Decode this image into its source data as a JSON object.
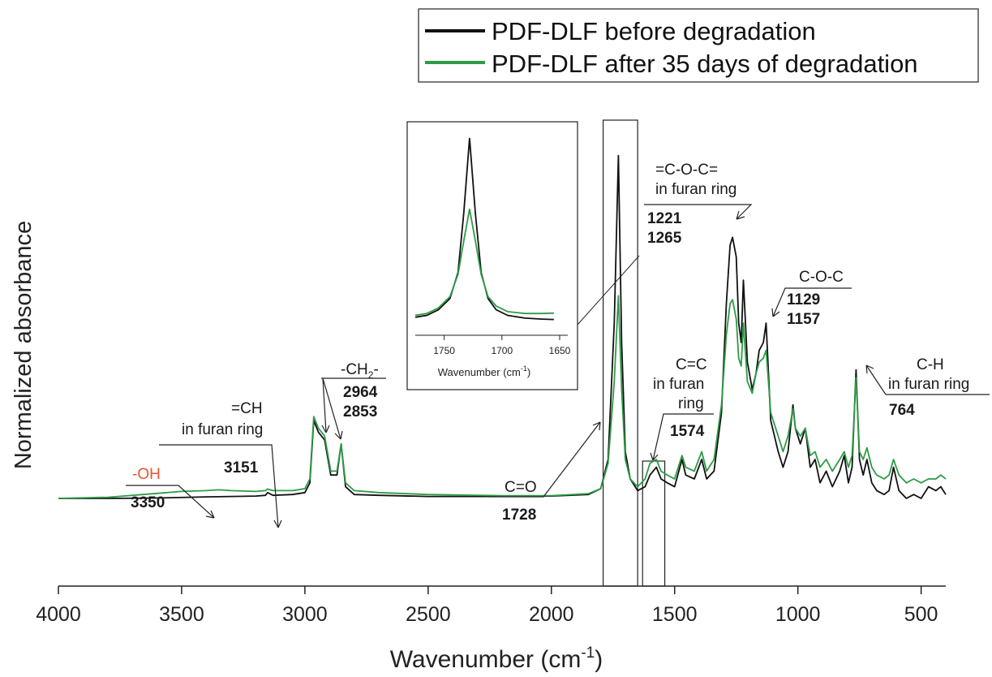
{
  "chart_data": {
    "type": "line",
    "xlabel_main": "Wavenumber (cm",
    "xlabel_sup": "-1",
    "xlabel_close": ")",
    "ylabel": "Normalized absorbance",
    "xlim": [
      4000,
      400
    ],
    "xaxis_reversed": true,
    "ylim": [
      0,
      1
    ],
    "xticks": [
      4000,
      3500,
      3000,
      2500,
      2000,
      1500,
      1000,
      500
    ],
    "grid": false,
    "legend_position": "top-right",
    "series": [
      {
        "name": "PDF-DLF before degradation",
        "color": "#111111",
        "points": [
          [
            4000,
            0.1
          ],
          [
            3800,
            0.1
          ],
          [
            3600,
            0.101
          ],
          [
            3400,
            0.104
          ],
          [
            3200,
            0.106
          ],
          [
            3160,
            0.108
          ],
          [
            3151,
            0.115
          ],
          [
            3130,
            0.108
          ],
          [
            3050,
            0.11
          ],
          [
            3000,
            0.115
          ],
          [
            2980,
            0.14
          ],
          [
            2964,
            0.3
          ],
          [
            2945,
            0.27
          ],
          [
            2920,
            0.25
          ],
          [
            2895,
            0.16
          ],
          [
            2870,
            0.16
          ],
          [
            2853,
            0.24
          ],
          [
            2835,
            0.13
          ],
          [
            2800,
            0.11
          ],
          [
            2700,
            0.108
          ],
          [
            2500,
            0.105
          ],
          [
            2200,
            0.105
          ],
          [
            2000,
            0.106
          ],
          [
            1850,
            0.11
          ],
          [
            1800,
            0.125
          ],
          [
            1770,
            0.2
          ],
          [
            1745,
            0.55
          ],
          [
            1728,
            0.98
          ],
          [
            1715,
            0.5
          ],
          [
            1700,
            0.22
          ],
          [
            1680,
            0.15
          ],
          [
            1650,
            0.12
          ],
          [
            1620,
            0.13
          ],
          [
            1600,
            0.16
          ],
          [
            1574,
            0.18
          ],
          [
            1555,
            0.15
          ],
          [
            1530,
            0.14
          ],
          [
            1500,
            0.13
          ],
          [
            1470,
            0.2
          ],
          [
            1455,
            0.16
          ],
          [
            1420,
            0.15
          ],
          [
            1390,
            0.2
          ],
          [
            1370,
            0.15
          ],
          [
            1340,
            0.17
          ],
          [
            1310,
            0.32
          ],
          [
            1290,
            0.6
          ],
          [
            1275,
            0.75
          ],
          [
            1265,
            0.77
          ],
          [
            1250,
            0.72
          ],
          [
            1240,
            0.55
          ],
          [
            1230,
            0.5
          ],
          [
            1221,
            0.66
          ],
          [
            1205,
            0.45
          ],
          [
            1185,
            0.38
          ],
          [
            1170,
            0.42
          ],
          [
            1157,
            0.48
          ],
          [
            1140,
            0.5
          ],
          [
            1129,
            0.55
          ],
          [
            1110,
            0.3
          ],
          [
            1080,
            0.22
          ],
          [
            1060,
            0.18
          ],
          [
            1040,
            0.22
          ],
          [
            1020,
            0.34
          ],
          [
            1010,
            0.28
          ],
          [
            990,
            0.24
          ],
          [
            970,
            0.28
          ],
          [
            950,
            0.18
          ],
          [
            930,
            0.2
          ],
          [
            910,
            0.14
          ],
          [
            885,
            0.17
          ],
          [
            860,
            0.13
          ],
          [
            830,
            0.17
          ],
          [
            812,
            0.21
          ],
          [
            795,
            0.14
          ],
          [
            780,
            0.18
          ],
          [
            764,
            0.43
          ],
          [
            750,
            0.2
          ],
          [
            735,
            0.16
          ],
          [
            720,
            0.2
          ],
          [
            700,
            0.14
          ],
          [
            680,
            0.12
          ],
          [
            650,
            0.11
          ],
          [
            630,
            0.12
          ],
          [
            612,
            0.18
          ],
          [
            590,
            0.12
          ],
          [
            560,
            0.1
          ],
          [
            530,
            0.11
          ],
          [
            500,
            0.1
          ],
          [
            470,
            0.13
          ],
          [
            440,
            0.12
          ],
          [
            420,
            0.13
          ],
          [
            400,
            0.11
          ]
        ]
      },
      {
        "name": "PDF-DLF after 35 days of degradation",
        "color": "#2e9b47",
        "points": [
          [
            4000,
            0.1
          ],
          [
            3800,
            0.103
          ],
          [
            3600,
            0.113
          ],
          [
            3500,
            0.118
          ],
          [
            3400,
            0.12
          ],
          [
            3350,
            0.122
          ],
          [
            3300,
            0.12
          ],
          [
            3200,
            0.118
          ],
          [
            3160,
            0.12
          ],
          [
            3151,
            0.124
          ],
          [
            3130,
            0.12
          ],
          [
            3050,
            0.12
          ],
          [
            3000,
            0.125
          ],
          [
            2980,
            0.15
          ],
          [
            2964,
            0.31
          ],
          [
            2945,
            0.28
          ],
          [
            2920,
            0.26
          ],
          [
            2895,
            0.17
          ],
          [
            2870,
            0.17
          ],
          [
            2853,
            0.24
          ],
          [
            2835,
            0.14
          ],
          [
            2800,
            0.12
          ],
          [
            2700,
            0.115
          ],
          [
            2500,
            0.11
          ],
          [
            2200,
            0.107
          ],
          [
            2000,
            0.107
          ],
          [
            1850,
            0.112
          ],
          [
            1800,
            0.125
          ],
          [
            1770,
            0.19
          ],
          [
            1745,
            0.4
          ],
          [
            1728,
            0.62
          ],
          [
            1715,
            0.38
          ],
          [
            1700,
            0.2
          ],
          [
            1680,
            0.15
          ],
          [
            1650,
            0.13
          ],
          [
            1620,
            0.15
          ],
          [
            1600,
            0.19
          ],
          [
            1574,
            0.2
          ],
          [
            1555,
            0.17
          ],
          [
            1530,
            0.16
          ],
          [
            1500,
            0.15
          ],
          [
            1470,
            0.21
          ],
          [
            1455,
            0.18
          ],
          [
            1420,
            0.17
          ],
          [
            1390,
            0.22
          ],
          [
            1370,
            0.17
          ],
          [
            1340,
            0.2
          ],
          [
            1310,
            0.34
          ],
          [
            1290,
            0.52
          ],
          [
            1275,
            0.6
          ],
          [
            1265,
            0.61
          ],
          [
            1250,
            0.56
          ],
          [
            1240,
            0.46
          ],
          [
            1230,
            0.44
          ],
          [
            1221,
            0.55
          ],
          [
            1205,
            0.4
          ],
          [
            1185,
            0.37
          ],
          [
            1170,
            0.42
          ],
          [
            1157,
            0.45
          ],
          [
            1140,
            0.46
          ],
          [
            1129,
            0.48
          ],
          [
            1110,
            0.32
          ],
          [
            1080,
            0.26
          ],
          [
            1060,
            0.22
          ],
          [
            1040,
            0.26
          ],
          [
            1020,
            0.33
          ],
          [
            1010,
            0.28
          ],
          [
            990,
            0.26
          ],
          [
            970,
            0.28
          ],
          [
            950,
            0.21
          ],
          [
            930,
            0.22
          ],
          [
            910,
            0.18
          ],
          [
            885,
            0.2
          ],
          [
            860,
            0.17
          ],
          [
            830,
            0.2
          ],
          [
            812,
            0.22
          ],
          [
            795,
            0.18
          ],
          [
            780,
            0.21
          ],
          [
            764,
            0.41
          ],
          [
            750,
            0.22
          ],
          [
            735,
            0.2
          ],
          [
            720,
            0.23
          ],
          [
            700,
            0.18
          ],
          [
            680,
            0.16
          ],
          [
            650,
            0.15
          ],
          [
            630,
            0.16
          ],
          [
            612,
            0.2
          ],
          [
            590,
            0.16
          ],
          [
            560,
            0.14
          ],
          [
            530,
            0.15
          ],
          [
            500,
            0.14
          ],
          [
            470,
            0.15
          ],
          [
            440,
            0.15
          ],
          [
            420,
            0.16
          ],
          [
            400,
            0.15
          ]
        ]
      }
    ],
    "highlight_boxes": [
      {
        "x_from": 1790,
        "x_to": 1650
      },
      {
        "x_from": 1630,
        "x_to": 1540
      }
    ],
    "inset": {
      "xlim": [
        1775,
        1650
      ],
      "xticks": [
        1750,
        1700,
        1650
      ],
      "xlabel_main": "Wavenumber (cm",
      "xlabel_sup": "-1",
      "xlabel_close": ")",
      "before": [
        [
          1775,
          0.04
        ],
        [
          1765,
          0.05
        ],
        [
          1755,
          0.08
        ],
        [
          1745,
          0.14
        ],
        [
          1738,
          0.28
        ],
        [
          1733,
          0.6
        ],
        [
          1728,
          1.0
        ],
        [
          1723,
          0.6
        ],
        [
          1718,
          0.28
        ],
        [
          1712,
          0.14
        ],
        [
          1705,
          0.08
        ],
        [
          1695,
          0.05
        ],
        [
          1680,
          0.035
        ],
        [
          1665,
          0.03
        ],
        [
          1655,
          0.028
        ]
      ],
      "after": [
        [
          1775,
          0.05
        ],
        [
          1765,
          0.06
        ],
        [
          1755,
          0.09
        ],
        [
          1745,
          0.15
        ],
        [
          1738,
          0.27
        ],
        [
          1733,
          0.45
        ],
        [
          1728,
          0.62
        ],
        [
          1723,
          0.45
        ],
        [
          1718,
          0.27
        ],
        [
          1712,
          0.15
        ],
        [
          1705,
          0.1
        ],
        [
          1695,
          0.07
        ],
        [
          1680,
          0.06
        ],
        [
          1665,
          0.06
        ],
        [
          1655,
          0.062
        ]
      ]
    }
  },
  "annotations": {
    "oh_label": "-OH",
    "oh_num": "3350",
    "ch_label_1": "=CH",
    "ch_label_2": "in furan ring",
    "ch_num": "3151",
    "ch2_label_main": "-CH",
    "ch2_label_sub": "2",
    "ch2_label_tail": "-",
    "ch2_num_1": "2964",
    "ch2_num_2": "2853",
    "co_label": "C=O",
    "co_num": "1728",
    "coc_furan_label_1": "=C-O-C=",
    "coc_furan_label_2": "in furan ring",
    "coc_furan_num_1": "1221",
    "coc_furan_num_2": "1265",
    "cc_label_1": "C=C",
    "cc_label_2": "in furan",
    "cc_label_3": "ring",
    "cc_num": "1574",
    "coc_label": "C-O-C",
    "coc_num_1": "1129",
    "coc_num_2": "1157",
    "chf_label_1": "C-H",
    "chf_label_2": "in furan ring",
    "chf_num": "764"
  },
  "colors": {
    "before": "#111111",
    "after": "#2e9b47",
    "oh_accent": "#e8542f"
  }
}
